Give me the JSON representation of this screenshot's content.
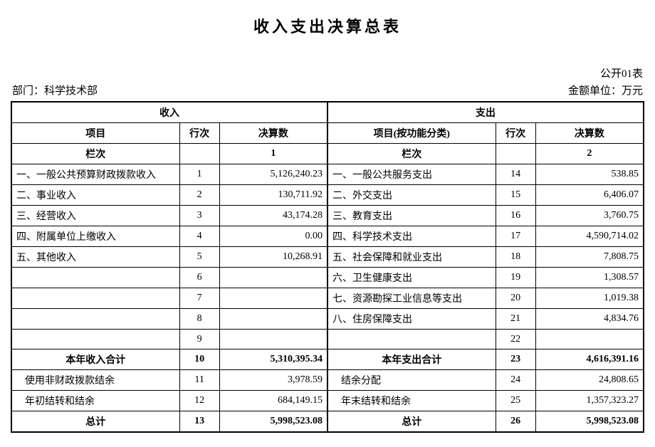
{
  "title": "收入支出决算总表",
  "meta": {
    "dept_label": "部门：",
    "dept_value": "科学技术部",
    "form_code": "公开01表",
    "unit_label": "金额单位：万元"
  },
  "headers": {
    "income_group": "收入",
    "expense_group": "支出",
    "item_income": "项目",
    "item_expense": "项目(按功能分类)",
    "line_no": "行次",
    "settle": "决算数",
    "column_no": "栏次",
    "col1": "1",
    "col2": "2"
  },
  "rows": [
    {
      "in_item": "一、一般公共预算财政拨款收入",
      "in_line": "1",
      "in_val": "5,126,240.23",
      "ex_item": "一、一般公共服务支出",
      "ex_line": "14",
      "ex_val": "538.85"
    },
    {
      "in_item": "二、事业收入",
      "in_line": "2",
      "in_val": "130,711.92",
      "ex_item": "二、外交支出",
      "ex_line": "15",
      "ex_val": "6,406.07"
    },
    {
      "in_item": "三、经营收入",
      "in_line": "3",
      "in_val": "43,174.28",
      "ex_item": "三、教育支出",
      "ex_line": "16",
      "ex_val": "3,760.75"
    },
    {
      "in_item": "四、附属单位上缴收入",
      "in_line": "4",
      "in_val": "0.00",
      "ex_item": "四、科学技术支出",
      "ex_line": "17",
      "ex_val": "4,590,714.02"
    },
    {
      "in_item": "五、其他收入",
      "in_line": "5",
      "in_val": "10,268.91",
      "ex_item": "五、社会保障和就业支出",
      "ex_line": "18",
      "ex_val": "7,808.75"
    },
    {
      "in_item": "",
      "in_line": "6",
      "in_val": "",
      "ex_item": "六、卫生健康支出",
      "ex_line": "19",
      "ex_val": "1,308.57"
    },
    {
      "in_item": "",
      "in_line": "7",
      "in_val": "",
      "ex_item": "七、资源勘探工业信息等支出",
      "ex_line": "20",
      "ex_val": "1,019.38"
    },
    {
      "in_item": "",
      "in_line": "8",
      "in_val": "",
      "ex_item": "八、住房保障支出",
      "ex_line": "21",
      "ex_val": "4,834.76"
    },
    {
      "in_item": "",
      "in_line": "9",
      "in_val": "",
      "ex_item": "",
      "ex_line": "22",
      "ex_val": ""
    }
  ],
  "subtotal": {
    "in_item": "本年收入合计",
    "in_line": "10",
    "in_val": "5,310,395.34",
    "ex_item": "本年支出合计",
    "ex_line": "23",
    "ex_val": "4,616,391.16"
  },
  "extra": [
    {
      "in_item": "使用非财政拨款结余",
      "in_line": "11",
      "in_val": "3,978.59",
      "ex_item": "结余分配",
      "ex_line": "24",
      "ex_val": "24,808.65",
      "indent": true
    },
    {
      "in_item": "年初结转和结余",
      "in_line": "12",
      "in_val": "684,149.15",
      "ex_item": "年末结转和结余",
      "ex_line": "25",
      "ex_val": "1,357,323.27",
      "indent": true
    }
  ],
  "total": {
    "in_item": "总计",
    "in_line": "13",
    "in_val": "5,998,523.08",
    "ex_item": "总计",
    "ex_line": "26",
    "ex_val": "5,998,523.08"
  }
}
